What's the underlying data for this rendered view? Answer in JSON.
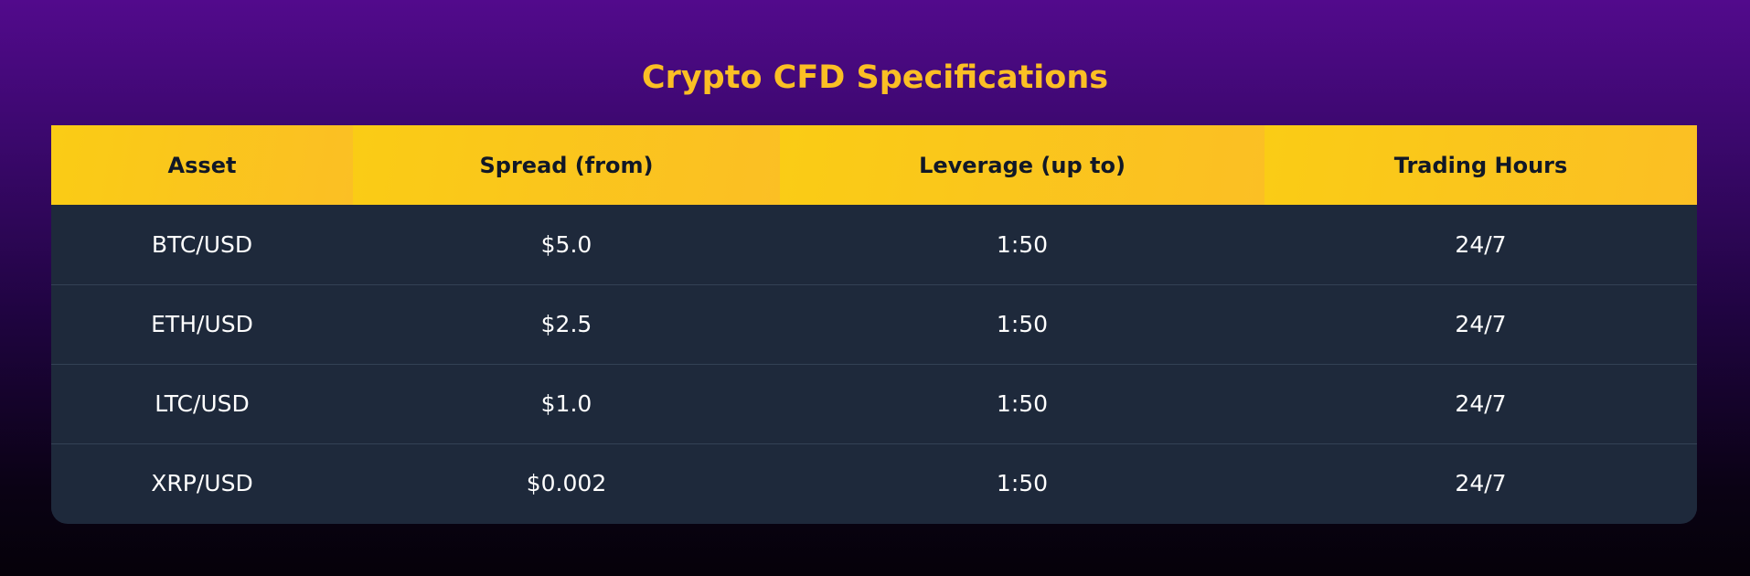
{
  "title": "Crypto CFD Specifications",
  "colors": {
    "accent": "#fbbf24",
    "header_bg": "#facc15",
    "row_bg": "#1e293b",
    "bg_top": "#520a8c",
    "bg_bottom": "#050109"
  },
  "table": {
    "headers": [
      "Asset",
      "Spread (from)",
      "Leverage (up to)",
      "Trading Hours"
    ],
    "rows": [
      [
        "BTC/USD",
        "$5.0",
        "1:50",
        "24/7"
      ],
      [
        "ETH/USD",
        "$2.5",
        "1:50",
        "24/7"
      ],
      [
        "LTC/USD",
        "$1.0",
        "1:50",
        "24/7"
      ],
      [
        "XRP/USD",
        "$0.002",
        "1:50",
        "24/7"
      ]
    ]
  }
}
